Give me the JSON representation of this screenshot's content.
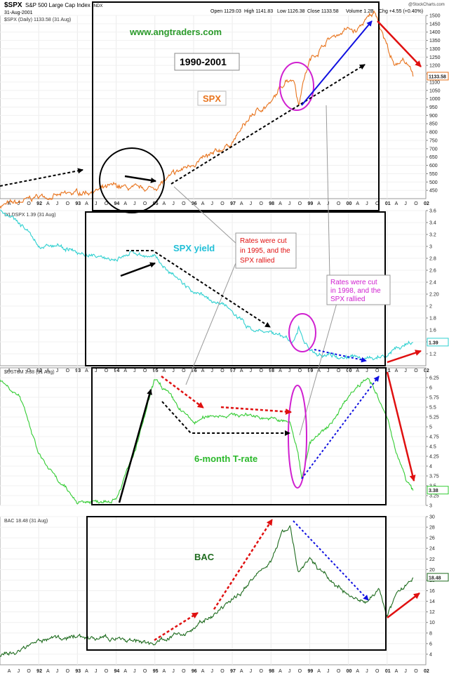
{
  "header": {
    "symbol": "$SPX",
    "name": "S&P 500 Large Cap Index",
    "exchange": "INDX",
    "date": "31-Aug-2001",
    "open": "Open 1129.03",
    "high": "High 1141.83",
    "low": "Low 1126.38",
    "close": "Close 1133.58",
    "volume": "Volume 1.2B",
    "chg": "Chg +4.55 (+0.40%)",
    "brand": "@StockCharts.com"
  },
  "annotations": {
    "website": "www.angtraders.com",
    "period": "1990-2001",
    "spx_label": "SPX",
    "yield_label": "SPX yield",
    "trate_label": "6-month T-rate",
    "bac_label": "BAC",
    "callout_1995": [
      "Rates were cut",
      "in 1995, and the",
      "SPX rallied"
    ],
    "callout_1998": [
      "Rates were cut",
      "in 1998, and the",
      "SPX rallied"
    ]
  },
  "x_axis": {
    "labels": [
      "A",
      "J",
      "O",
      "92",
      "A",
      "J",
      "O",
      "93",
      "A",
      "J",
      "O",
      "94",
      "A",
      "J",
      "O",
      "95",
      "A",
      "J",
      "O",
      "96",
      "A",
      "J",
      "O",
      "97",
      "A",
      "J",
      "O",
      "98",
      "A",
      "J",
      "O",
      "99",
      "A",
      "J",
      "O",
      "00",
      "A",
      "J",
      "O",
      "01",
      "A",
      "J",
      "O",
      "02"
    ]
  },
  "chart_data": [
    {
      "type": "line",
      "title": "$SPX (Daily) 1133.58 (31 Aug)",
      "series": [
        {
          "name": "$SPX",
          "color": "#e8731c"
        }
      ],
      "x": [
        1991.0,
        1991.5,
        1992.0,
        1992.5,
        1993.0,
        1993.5,
        1994.0,
        1994.5,
        1995.0,
        1995.5,
        1996.0,
        1996.5,
        1997.0,
        1997.5,
        1997.8,
        1998.0,
        1998.4,
        1998.6,
        1998.72,
        1998.8,
        1999.0,
        1999.5,
        2000.0,
        2000.2,
        2000.4,
        2000.7,
        2001.0,
        2001.2,
        2001.4,
        2001.67
      ],
      "y": [
        360,
        375,
        415,
        415,
        435,
        450,
        475,
        455,
        465,
        545,
        615,
        660,
        740,
        900,
        950,
        970,
        1120,
        1120,
        960,
        1080,
        1230,
        1360,
        1420,
        1400,
        1460,
        1520,
        1320,
        1180,
        1250,
        1133.58
      ],
      "last_value": "1133.58",
      "ylim": [
        400,
        1500
      ],
      "yticks": [
        450,
        500,
        550,
        600,
        650,
        700,
        750,
        800,
        850,
        900,
        950,
        1000,
        1050,
        1100,
        1150,
        1200,
        1250,
        1300,
        1350,
        1400,
        1450,
        1500
      ]
    },
    {
      "type": "line",
      "title": "!YLDSPX 1.39 (31 Aug)",
      "series": [
        {
          "name": "!YLDSPX",
          "color": "#2fd0d0"
        }
      ],
      "x": [
        1991.0,
        1991.5,
        1992.0,
        1992.5,
        1993.0,
        1993.5,
        1994.0,
        1994.5,
        1995.0,
        1995.5,
        1996.0,
        1996.5,
        1997.0,
        1997.5,
        1998.0,
        1998.4,
        1998.6,
        1998.72,
        1998.85,
        1999.0,
        1999.5,
        2000.0,
        2000.5,
        2001.0,
        2001.2,
        2001.5,
        2001.67
      ],
      "y": [
        3.6,
        3.4,
        3.0,
        3.0,
        2.9,
        2.8,
        2.8,
        2.9,
        2.8,
        2.5,
        2.2,
        2.1,
        1.9,
        1.6,
        1.55,
        1.45,
        1.4,
        1.65,
        1.4,
        1.25,
        1.2,
        1.15,
        1.1,
        1.2,
        1.3,
        1.35,
        1.39
      ],
      "last_value": "1.39",
      "ylim": [
        1.0,
        3.6
      ],
      "yticks": [
        1.2,
        1.4,
        1.6,
        1.8,
        2.0,
        2.2,
        2.4,
        2.6,
        2.8,
        3.0,
        3.2,
        3.4,
        3.6
      ]
    },
    {
      "type": "line",
      "title": "$UST6M 3.38 (31 Aug)",
      "series": [
        {
          "name": "$UST6M",
          "color": "#33cc33"
        }
      ],
      "x": [
        1991.0,
        1991.5,
        1992.0,
        1992.5,
        1993.0,
        1993.5,
        1994.0,
        1994.5,
        1995.0,
        1995.3,
        1995.6,
        1996.0,
        1996.5,
        1997.0,
        1997.5,
        1998.0,
        1998.5,
        1998.7,
        1998.8,
        1999.0,
        1999.5,
        2000.0,
        2000.5,
        2001.0,
        2001.2,
        2001.5,
        2001.67
      ],
      "y": [
        6.2,
        5.8,
        4.3,
        3.6,
        3.1,
        3.1,
        3.2,
        4.4,
        6.2,
        5.9,
        5.5,
        5.1,
        5.3,
        5.3,
        5.3,
        5.2,
        5.1,
        4.3,
        3.7,
        4.6,
        5.0,
        5.8,
        6.3,
        5.2,
        4.5,
        3.6,
        3.38
      ],
      "last_value": "3.38",
      "ylim": [
        3.0,
        6.5
      ],
      "yticks": [
        3.0,
        3.25,
        3.5,
        3.75,
        4.0,
        4.25,
        4.5,
        4.75,
        5.0,
        5.25,
        5.5,
        5.75,
        6.0,
        6.25
      ]
    },
    {
      "type": "line",
      "title": "BAC 18.48 (31 Aug)",
      "series": [
        {
          "name": "BAC",
          "color": "#1e6b1e"
        }
      ],
      "x": [
        1991.0,
        1991.5,
        1992.0,
        1992.5,
        1993.0,
        1993.5,
        1994.0,
        1994.5,
        1995.0,
        1995.5,
        1996.0,
        1996.5,
        1997.0,
        1997.5,
        1998.0,
        1998.3,
        1998.5,
        1998.7,
        1999.0,
        1999.5,
        2000.0,
        2000.5,
        2000.8,
        2001.0,
        2001.2,
        2001.5,
        2001.67
      ],
      "y": [
        3.8,
        4.5,
        6.5,
        7,
        7.5,
        6.8,
        7,
        6.5,
        6.2,
        7.5,
        9,
        11,
        14,
        18,
        22,
        27,
        28,
        19,
        22,
        18,
        15,
        14,
        16,
        11.5,
        14.5,
        17,
        18.48
      ],
      "last_value": "18.48",
      "ylim": [
        2,
        30
      ],
      "yticks": [
        4,
        6,
        8,
        10,
        12,
        14,
        16,
        18,
        20,
        22,
        24,
        26,
        28,
        30
      ]
    }
  ]
}
